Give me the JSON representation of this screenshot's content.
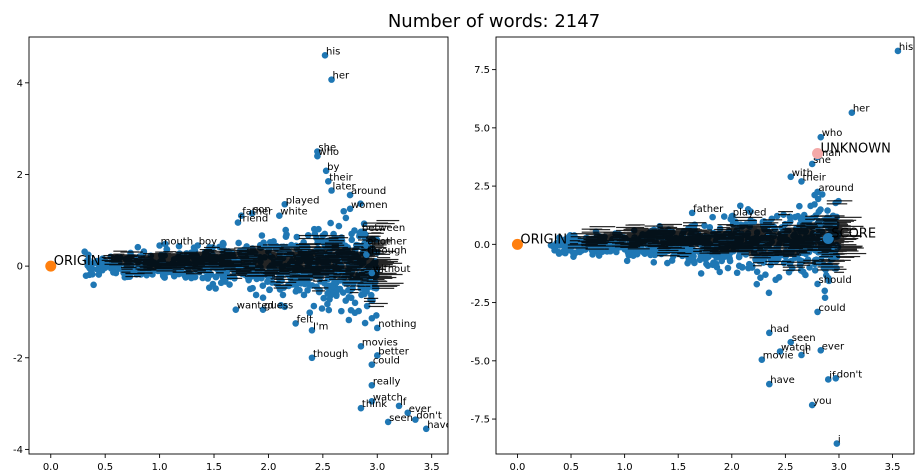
{
  "suptitle": "Number of words: 2147",
  "colors": {
    "point": "#1f77b4",
    "origin": "#ff7f0e",
    "unknown": "#f4a9a8",
    "axis": "#000000"
  },
  "chart_data": [
    {
      "type": "scatter",
      "xlim": [
        -0.2,
        3.65
      ],
      "ylim": [
        -4.1,
        5.0
      ],
      "xticks": [
        0.0,
        0.5,
        1.0,
        1.5,
        2.0,
        2.5,
        3.0,
        3.5
      ],
      "yticks": [
        -4,
        -2,
        0,
        2,
        4
      ],
      "highlight_points": [
        {
          "label": "ORIGIN",
          "x": 0.0,
          "y": 0.0,
          "color": "#ff7f0e"
        }
      ],
      "labeled_points": [
        {
          "label": "his",
          "x": 2.52,
          "y": 4.6
        },
        {
          "label": "her",
          "x": 2.58,
          "y": 4.07
        },
        {
          "label": "she",
          "x": 2.45,
          "y": 2.5
        },
        {
          "label": "who",
          "x": 2.45,
          "y": 2.4
        },
        {
          "label": "by",
          "x": 2.53,
          "y": 2.08
        },
        {
          "label": "their",
          "x": 2.55,
          "y": 1.85
        },
        {
          "label": "later",
          "x": 2.58,
          "y": 1.65
        },
        {
          "label": "around",
          "x": 2.75,
          "y": 1.55
        },
        {
          "label": "played",
          "x": 2.15,
          "y": 1.35
        },
        {
          "label": "son",
          "x": 1.85,
          "y": 1.15
        },
        {
          "label": "father",
          "x": 1.75,
          "y": 1.1
        },
        {
          "label": "friend",
          "x": 1.72,
          "y": 0.95
        },
        {
          "label": "white",
          "x": 2.1,
          "y": 1.1
        },
        {
          "label": "women",
          "x": 2.75,
          "y": 1.25
        },
        {
          "label": "between",
          "x": 2.85,
          "y": 0.75
        },
        {
          "label": "another",
          "x": 2.9,
          "y": 0.45
        },
        {
          "label": "through",
          "x": 2.9,
          "y": 0.25
        },
        {
          "label": "without",
          "x": 2.95,
          "y": -0.15
        },
        {
          "label": "nothing",
          "x": 3.0,
          "y": -1.35
        },
        {
          "label": "movies",
          "x": 2.85,
          "y": -1.75
        },
        {
          "label": "better",
          "x": 3.0,
          "y": -1.95
        },
        {
          "label": "could",
          "x": 2.95,
          "y": -2.15
        },
        {
          "label": "really",
          "x": 2.95,
          "y": -2.6
        },
        {
          "label": "watch",
          "x": 2.95,
          "y": -2.95
        },
        {
          "label": "if",
          "x": 3.2,
          "y": -3.05
        },
        {
          "label": "ever",
          "x": 3.28,
          "y": -3.2
        },
        {
          "label": "don't",
          "x": 3.35,
          "y": -3.35
        },
        {
          "label": "seen",
          "x": 3.1,
          "y": -3.4
        },
        {
          "label": "have",
          "x": 3.45,
          "y": -3.55
        },
        {
          "label": "think",
          "x": 2.85,
          "y": -3.1
        },
        {
          "label": "though",
          "x": 2.4,
          "y": -2.0
        },
        {
          "label": "guess",
          "x": 1.95,
          "y": -0.95
        },
        {
          "label": "wanted",
          "x": 1.7,
          "y": -0.95
        },
        {
          "label": "felt",
          "x": 2.25,
          "y": -1.25
        },
        {
          "label": "I'm",
          "x": 2.4,
          "y": -1.4
        },
        {
          "label": "mouth",
          "x": 1.0,
          "y": 0.45
        },
        {
          "label": "boy",
          "x": 1.35,
          "y": 0.45
        }
      ]
    },
    {
      "type": "scatter",
      "xlim": [
        -0.2,
        3.7
      ],
      "ylim": [
        -9.0,
        8.9
      ],
      "xticks": [
        0.0,
        0.5,
        1.0,
        1.5,
        2.0,
        2.5,
        3.0,
        3.5
      ],
      "yticks": [
        -7.5,
        -5.0,
        -2.5,
        0.0,
        2.5,
        5.0,
        7.5
      ],
      "highlight_points": [
        {
          "label": "ORIGIN",
          "x": 0.0,
          "y": 0.0,
          "color": "#ff7f0e"
        },
        {
          "label": "UNKNOWN",
          "x": 2.8,
          "y": 3.9,
          "color": "#f4a9a8"
        },
        {
          "label": "SCORE",
          "x": 2.9,
          "y": 0.25,
          "color": "#1f77b4"
        }
      ],
      "labeled_points": [
        {
          "label": "his",
          "x": 3.55,
          "y": 8.3
        },
        {
          "label": "her",
          "x": 3.12,
          "y": 5.65
        },
        {
          "label": "who",
          "x": 2.83,
          "y": 4.6
        },
        {
          "label": "she",
          "x": 2.75,
          "y": 3.45
        },
        {
          "label": "man",
          "x": 2.8,
          "y": 3.75
        },
        {
          "label": "with",
          "x": 2.55,
          "y": 2.9
        },
        {
          "label": "their",
          "x": 2.65,
          "y": 2.7
        },
        {
          "label": "around",
          "x": 2.8,
          "y": 2.25
        },
        {
          "label": "father",
          "x": 1.63,
          "y": 1.35
        },
        {
          "label": "played",
          "x": 2.0,
          "y": 1.2
        },
        {
          "label": "should",
          "x": 2.8,
          "y": -1.7
        },
        {
          "label": "could",
          "x": 2.8,
          "y": -2.9
        },
        {
          "label": "it",
          "x": 2.65,
          "y": -4.75
        },
        {
          "label": "ever",
          "x": 2.83,
          "y": -4.55
        },
        {
          "label": "seen",
          "x": 2.55,
          "y": -4.2
        },
        {
          "label": "watch",
          "x": 2.45,
          "y": -4.6
        },
        {
          "label": "movie",
          "x": 2.28,
          "y": -4.95
        },
        {
          "label": "had",
          "x": 2.35,
          "y": -3.8
        },
        {
          "label": "if",
          "x": 2.9,
          "y": -5.8
        },
        {
          "label": "don't",
          "x": 2.97,
          "y": -5.75
        },
        {
          "label": "have",
          "x": 2.35,
          "y": -6.0
        },
        {
          "label": "you",
          "x": 2.75,
          "y": -6.9
        },
        {
          "label": "i",
          "x": 2.98,
          "y": -8.55
        }
      ]
    }
  ]
}
